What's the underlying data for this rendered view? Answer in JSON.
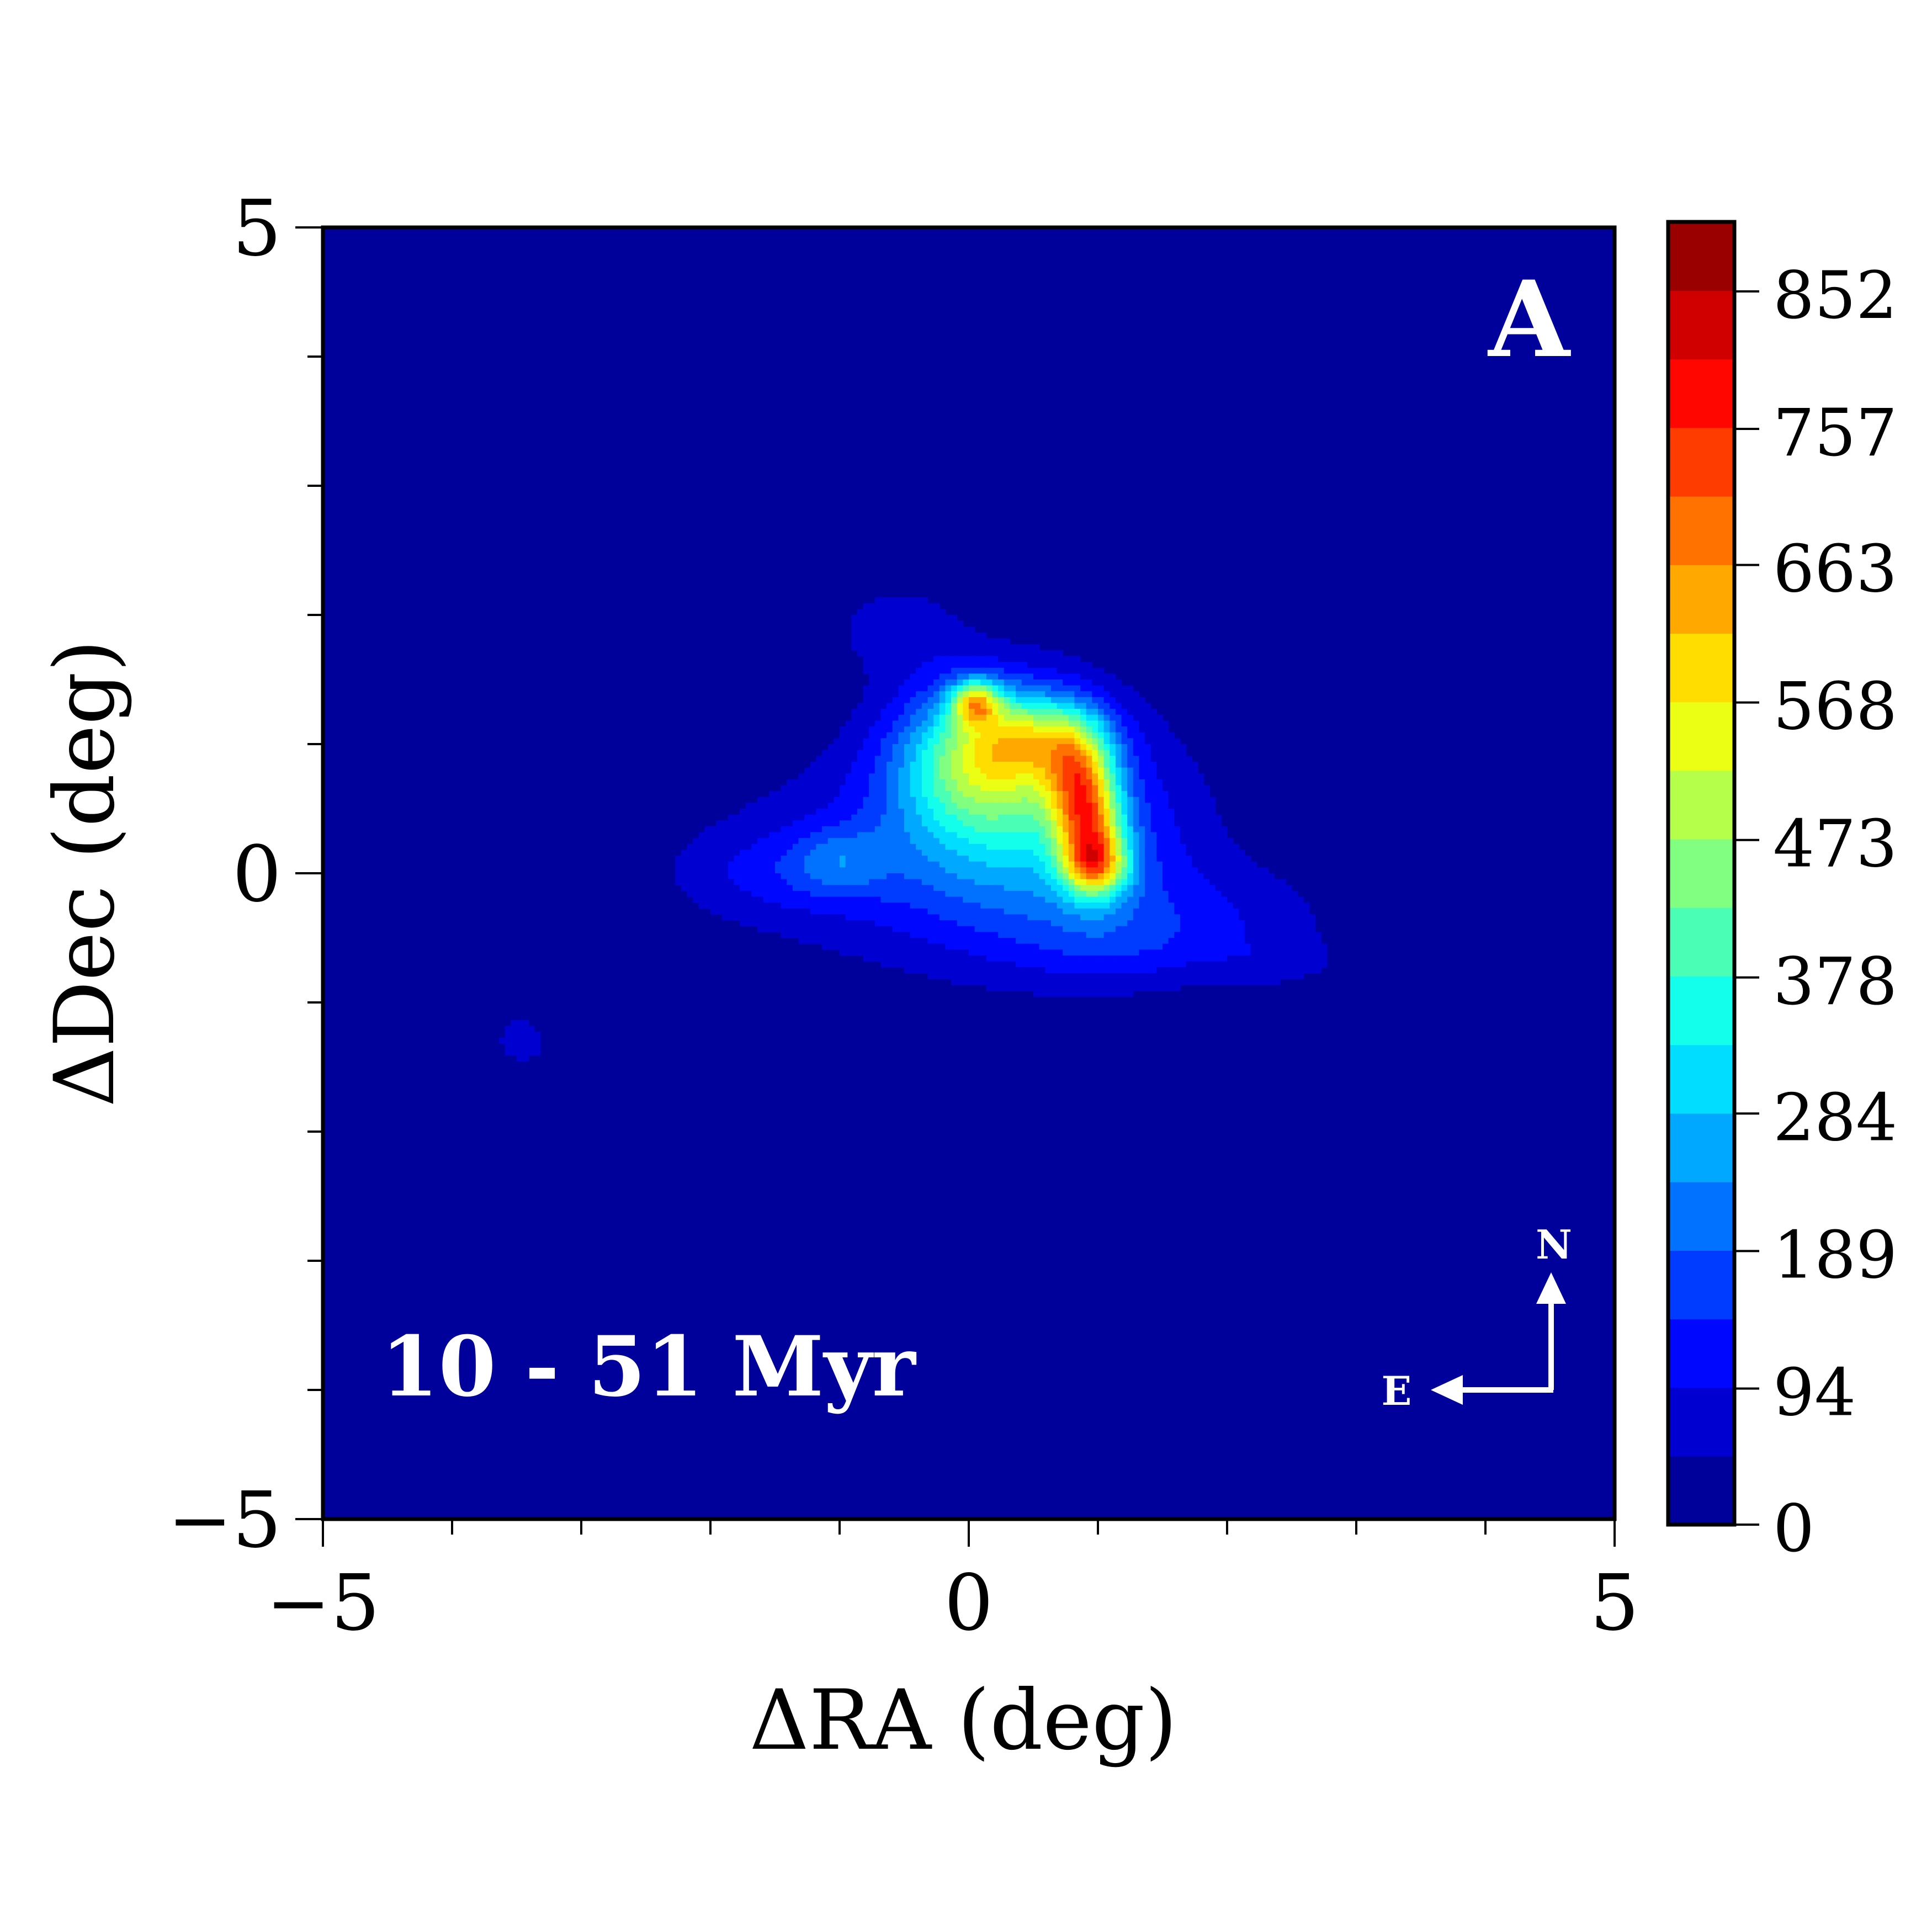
{
  "chart_data": {
    "type": "heatmap",
    "subtype": "filled-contour",
    "colormap": "jet",
    "xlabel": "ΔRA (deg)",
    "ylabel": "ΔDec (deg)",
    "xlim": [
      -5,
      5
    ],
    "ylim": [
      -5,
      5
    ],
    "x_ticks": [
      -5,
      0,
      5
    ],
    "x_tick_labels": [
      "−5",
      "0",
      "5"
    ],
    "y_ticks": [
      -5,
      0,
      5
    ],
    "y_tick_labels": [
      "−5",
      "0",
      "5"
    ],
    "x_minor_ticks": [
      -4,
      -3,
      -2,
      -1,
      1,
      2,
      3,
      4
    ],
    "y_minor_ticks": [
      -4,
      -3,
      -2,
      -1,
      1,
      2,
      3,
      4
    ],
    "colorbar": {
      "min": 0,
      "max": 900,
      "levels": 19,
      "tick_values": [
        0,
        94,
        189,
        284,
        378,
        473,
        568,
        663,
        757,
        852
      ],
      "tick_labels": [
        "0",
        "94",
        "189",
        "284",
        "378",
        "473",
        "568",
        "663",
        "757",
        "852"
      ]
    },
    "panel_label": "A",
    "annotation": "10 - 51 Myr",
    "compass": {
      "north": "N",
      "east": "E"
    },
    "features": [
      {
        "kind": "peak",
        "x": 0.05,
        "y": 1.3,
        "value": 880
      },
      {
        "kind": "ridge",
        "x": [
          0.4,
          0.8,
          0.9,
          1.0
        ],
        "y": [
          1.1,
          0.8,
          0.4,
          0.1
        ],
        "value": 800
      },
      {
        "kind": "plateau",
        "x": 0.1,
        "y": 0.9,
        "value": 500
      },
      {
        "kind": "blob",
        "x": -1.0,
        "y": 0.1,
        "value": 180
      },
      {
        "kind": "blob",
        "x": -3.3,
        "y": -1.3,
        "value": 40
      },
      {
        "kind": "blob",
        "x": -4.3,
        "y": -1.7,
        "value": 30
      }
    ]
  }
}
